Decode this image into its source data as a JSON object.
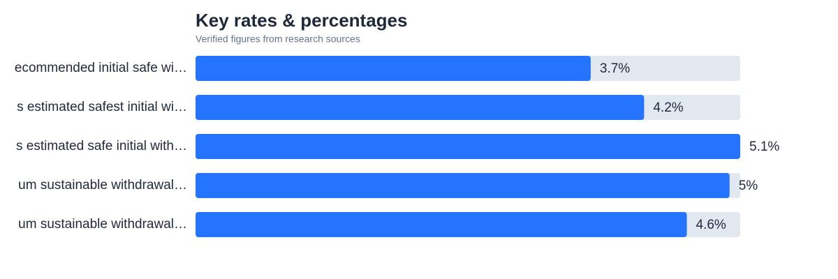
{
  "chart_data": {
    "type": "bar",
    "orientation": "horizontal",
    "title": "Key rates & percentages",
    "subtitle": "Verified figures from research sources",
    "categories": [
      "ecommended initial safe wi…",
      "s estimated safest initial wi…",
      "s estimated safe initial with…",
      "um sustainable withdrawal…",
      "um sustainable withdrawal…"
    ],
    "values": [
      3.7,
      4.2,
      5.1,
      5,
      4.6
    ],
    "value_labels": [
      "3.7%",
      "4.2%",
      "5.1%",
      "5%",
      "4.6%"
    ],
    "xlim": [
      0,
      5.1
    ],
    "color": "#2474ff",
    "track_color": "#e2e8f0"
  }
}
